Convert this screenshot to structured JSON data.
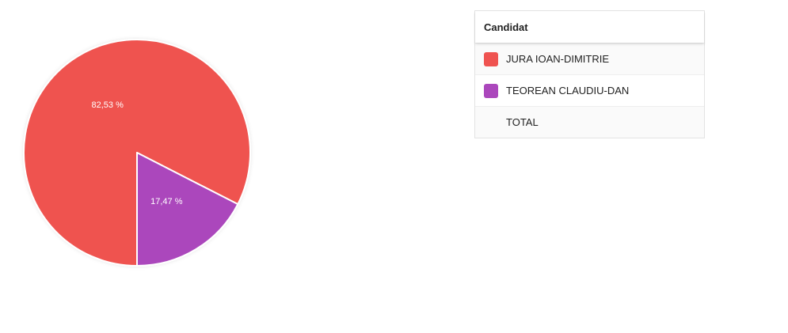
{
  "chart_data": {
    "type": "pie",
    "categories": [
      "JURA IOAN-DIMITRIE",
      "TEOREAN CLAUDIU-DAN"
    ],
    "values": [
      82.53,
      17.47
    ],
    "value_labels": [
      "82,53 %",
      "17,47 %"
    ],
    "colors": [
      "#ef5350",
      "#ab47bc"
    ],
    "legend_position": "right"
  },
  "legend": {
    "header": "Candidat",
    "rows": [
      {
        "label": "JURA IOAN-DIMITRIE",
        "color": "#ef5350"
      },
      {
        "label": "TEOREAN CLAUDIU-DAN",
        "color": "#ab47bc"
      },
      {
        "label": "TOTAL",
        "color": ""
      }
    ]
  }
}
